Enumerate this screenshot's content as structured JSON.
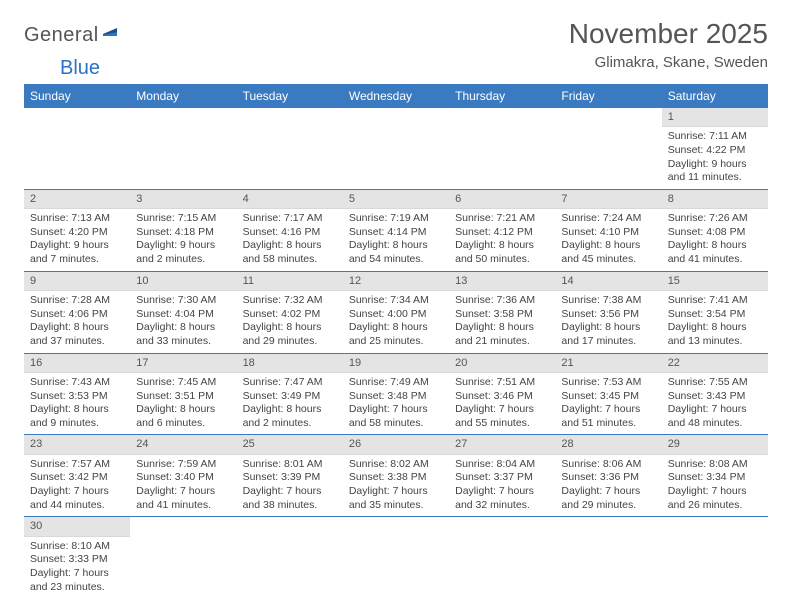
{
  "logo": {
    "general": "General",
    "blue": "Blue"
  },
  "title": "November 2025",
  "subtitle": "Glimakra, Skane, Sweden",
  "header_bg": "#3a7ac0",
  "daynum_bg": "#e4e4e4",
  "rule_color": "#3a7ac0",
  "day_headers": [
    "Sunday",
    "Monday",
    "Tuesday",
    "Wednesday",
    "Thursday",
    "Friday",
    "Saturday"
  ],
  "weeks": [
    [
      null,
      null,
      null,
      null,
      null,
      null,
      {
        "n": "1",
        "sunrise": "7:11 AM",
        "sunset": "4:22 PM",
        "daylight": "9 hours and 11 minutes."
      }
    ],
    [
      {
        "n": "2",
        "sunrise": "7:13 AM",
        "sunset": "4:20 PM",
        "daylight": "9 hours and 7 minutes."
      },
      {
        "n": "3",
        "sunrise": "7:15 AM",
        "sunset": "4:18 PM",
        "daylight": "9 hours and 2 minutes."
      },
      {
        "n": "4",
        "sunrise": "7:17 AM",
        "sunset": "4:16 PM",
        "daylight": "8 hours and 58 minutes."
      },
      {
        "n": "5",
        "sunrise": "7:19 AM",
        "sunset": "4:14 PM",
        "daylight": "8 hours and 54 minutes."
      },
      {
        "n": "6",
        "sunrise": "7:21 AM",
        "sunset": "4:12 PM",
        "daylight": "8 hours and 50 minutes."
      },
      {
        "n": "7",
        "sunrise": "7:24 AM",
        "sunset": "4:10 PM",
        "daylight": "8 hours and 45 minutes."
      },
      {
        "n": "8",
        "sunrise": "7:26 AM",
        "sunset": "4:08 PM",
        "daylight": "8 hours and 41 minutes."
      }
    ],
    [
      {
        "n": "9",
        "sunrise": "7:28 AM",
        "sunset": "4:06 PM",
        "daylight": "8 hours and 37 minutes."
      },
      {
        "n": "10",
        "sunrise": "7:30 AM",
        "sunset": "4:04 PM",
        "daylight": "8 hours and 33 minutes."
      },
      {
        "n": "11",
        "sunrise": "7:32 AM",
        "sunset": "4:02 PM",
        "daylight": "8 hours and 29 minutes."
      },
      {
        "n": "12",
        "sunrise": "7:34 AM",
        "sunset": "4:00 PM",
        "daylight": "8 hours and 25 minutes."
      },
      {
        "n": "13",
        "sunrise": "7:36 AM",
        "sunset": "3:58 PM",
        "daylight": "8 hours and 21 minutes."
      },
      {
        "n": "14",
        "sunrise": "7:38 AM",
        "sunset": "3:56 PM",
        "daylight": "8 hours and 17 minutes."
      },
      {
        "n": "15",
        "sunrise": "7:41 AM",
        "sunset": "3:54 PM",
        "daylight": "8 hours and 13 minutes."
      }
    ],
    [
      {
        "n": "16",
        "sunrise": "7:43 AM",
        "sunset": "3:53 PM",
        "daylight": "8 hours and 9 minutes."
      },
      {
        "n": "17",
        "sunrise": "7:45 AM",
        "sunset": "3:51 PM",
        "daylight": "8 hours and 6 minutes."
      },
      {
        "n": "18",
        "sunrise": "7:47 AM",
        "sunset": "3:49 PM",
        "daylight": "8 hours and 2 minutes."
      },
      {
        "n": "19",
        "sunrise": "7:49 AM",
        "sunset": "3:48 PM",
        "daylight": "7 hours and 58 minutes."
      },
      {
        "n": "20",
        "sunrise": "7:51 AM",
        "sunset": "3:46 PM",
        "daylight": "7 hours and 55 minutes."
      },
      {
        "n": "21",
        "sunrise": "7:53 AM",
        "sunset": "3:45 PM",
        "daylight": "7 hours and 51 minutes."
      },
      {
        "n": "22",
        "sunrise": "7:55 AM",
        "sunset": "3:43 PM",
        "daylight": "7 hours and 48 minutes."
      }
    ],
    [
      {
        "n": "23",
        "sunrise": "7:57 AM",
        "sunset": "3:42 PM",
        "daylight": "7 hours and 44 minutes."
      },
      {
        "n": "24",
        "sunrise": "7:59 AM",
        "sunset": "3:40 PM",
        "daylight": "7 hours and 41 minutes."
      },
      {
        "n": "25",
        "sunrise": "8:01 AM",
        "sunset": "3:39 PM",
        "daylight": "7 hours and 38 minutes."
      },
      {
        "n": "26",
        "sunrise": "8:02 AM",
        "sunset": "3:38 PM",
        "daylight": "7 hours and 35 minutes."
      },
      {
        "n": "27",
        "sunrise": "8:04 AM",
        "sunset": "3:37 PM",
        "daylight": "7 hours and 32 minutes."
      },
      {
        "n": "28",
        "sunrise": "8:06 AM",
        "sunset": "3:36 PM",
        "daylight": "7 hours and 29 minutes."
      },
      {
        "n": "29",
        "sunrise": "8:08 AM",
        "sunset": "3:34 PM",
        "daylight": "7 hours and 26 minutes."
      }
    ],
    [
      {
        "n": "30",
        "sunrise": "8:10 AM",
        "sunset": "3:33 PM",
        "daylight": "7 hours and 23 minutes."
      },
      null,
      null,
      null,
      null,
      null,
      null
    ]
  ],
  "labels": {
    "sunrise": "Sunrise: ",
    "sunset": "Sunset: ",
    "daylight": "Daylight: "
  }
}
